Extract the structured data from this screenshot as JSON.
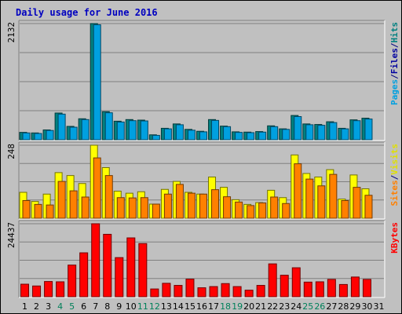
{
  "chart_data": {
    "type": "bar",
    "title": "Daily usage for June 2016",
    "categories": [
      "1",
      "2",
      "3",
      "4",
      "5",
      "6",
      "7",
      "8",
      "9",
      "10",
      "11",
      "12",
      "13",
      "14",
      "15",
      "16",
      "17",
      "18",
      "19",
      "20",
      "21",
      "22",
      "23",
      "24",
      "25",
      "26",
      "27",
      "28",
      "29",
      "30",
      "31"
    ],
    "weekend_categories": [
      "4",
      "5",
      "11",
      "12",
      "18",
      "19",
      "25",
      "26"
    ],
    "panels": [
      {
        "id": "hits",
        "ymax_label": "2132",
        "ymax": 2132,
        "legend": [
          {
            "text": "Pages",
            "color": "#00a0e0"
          },
          {
            "text": "/",
            "color": "#000080"
          },
          {
            "text": "Files",
            "color": "#0000a0"
          },
          {
            "text": "/",
            "color": "#000080"
          },
          {
            "text": "Hits",
            "color": "#008080"
          }
        ],
        "series": [
          {
            "name": "Hits",
            "color": "#008080",
            "values": [
              135,
              125,
              180,
              490,
              245,
              385,
              2132,
              515,
              340,
              370,
              360,
              90,
              210,
              290,
              190,
              155,
              370,
              250,
              145,
              140,
              150,
              255,
              200,
              445,
              290,
              280,
              330,
              210,
              365,
              395,
              0
            ]
          },
          {
            "name": "Files",
            "color": "#00a0e0",
            "values": [
              125,
              115,
              170,
              470,
              230,
              370,
              2110,
              495,
              325,
              350,
              345,
              80,
              200,
              275,
              175,
              145,
              355,
              240,
              135,
              130,
              140,
              240,
              190,
              425,
              275,
              265,
              315,
              200,
              350,
              380,
              0
            ]
          }
        ]
      },
      {
        "id": "visits",
        "ymax_label": "248",
        "ymax": 248,
        "legend": [
          {
            "text": "Sites",
            "color": "#ff8000"
          },
          {
            "text": "/",
            "color": "#000080"
          },
          {
            "text": "Visits",
            "color": "#e0e000"
          }
        ],
        "series": [
          {
            "name": "Visits",
            "color": "#ffff00",
            "values": [
              88,
              57,
              82,
              155,
              145,
              118,
              248,
              172,
              92,
              85,
              90,
              48,
              98,
              125,
              88,
              82,
              140,
              105,
              63,
              47,
              53,
              95,
              70,
              215,
              152,
              140,
              165,
              65,
              147,
              100,
              0
            ]
          },
          {
            "name": "Sites",
            "color": "#ff8000",
            "values": [
              60,
              47,
              45,
              125,
              93,
              72,
              205,
              145,
              70,
              69,
              70,
              48,
              82,
              115,
              85,
              82,
              97,
              73,
              55,
              43,
              52,
              72,
              50,
              185,
              133,
              110,
              149,
              60,
              105,
              78,
              0
            ]
          }
        ]
      },
      {
        "id": "kbytes",
        "ymax_label": "24437",
        "ymax": 24437,
        "legend": [
          {
            "text": "KBytes",
            "color": "#ff0000"
          }
        ],
        "series": [
          {
            "name": "KBytes",
            "color": "#ff0000",
            "values": [
              4200,
              3600,
              5100,
              5000,
              10600,
              14700,
              24437,
              20900,
              13100,
              19700,
              17800,
              2600,
              4500,
              3800,
              5900,
              3000,
              3400,
              4400,
              3400,
              2200,
              3800,
              11000,
              7200,
              9700,
              4900,
              5000,
              5800,
              4100,
              6600,
              5800,
              0
            ]
          }
        ]
      }
    ]
  }
}
